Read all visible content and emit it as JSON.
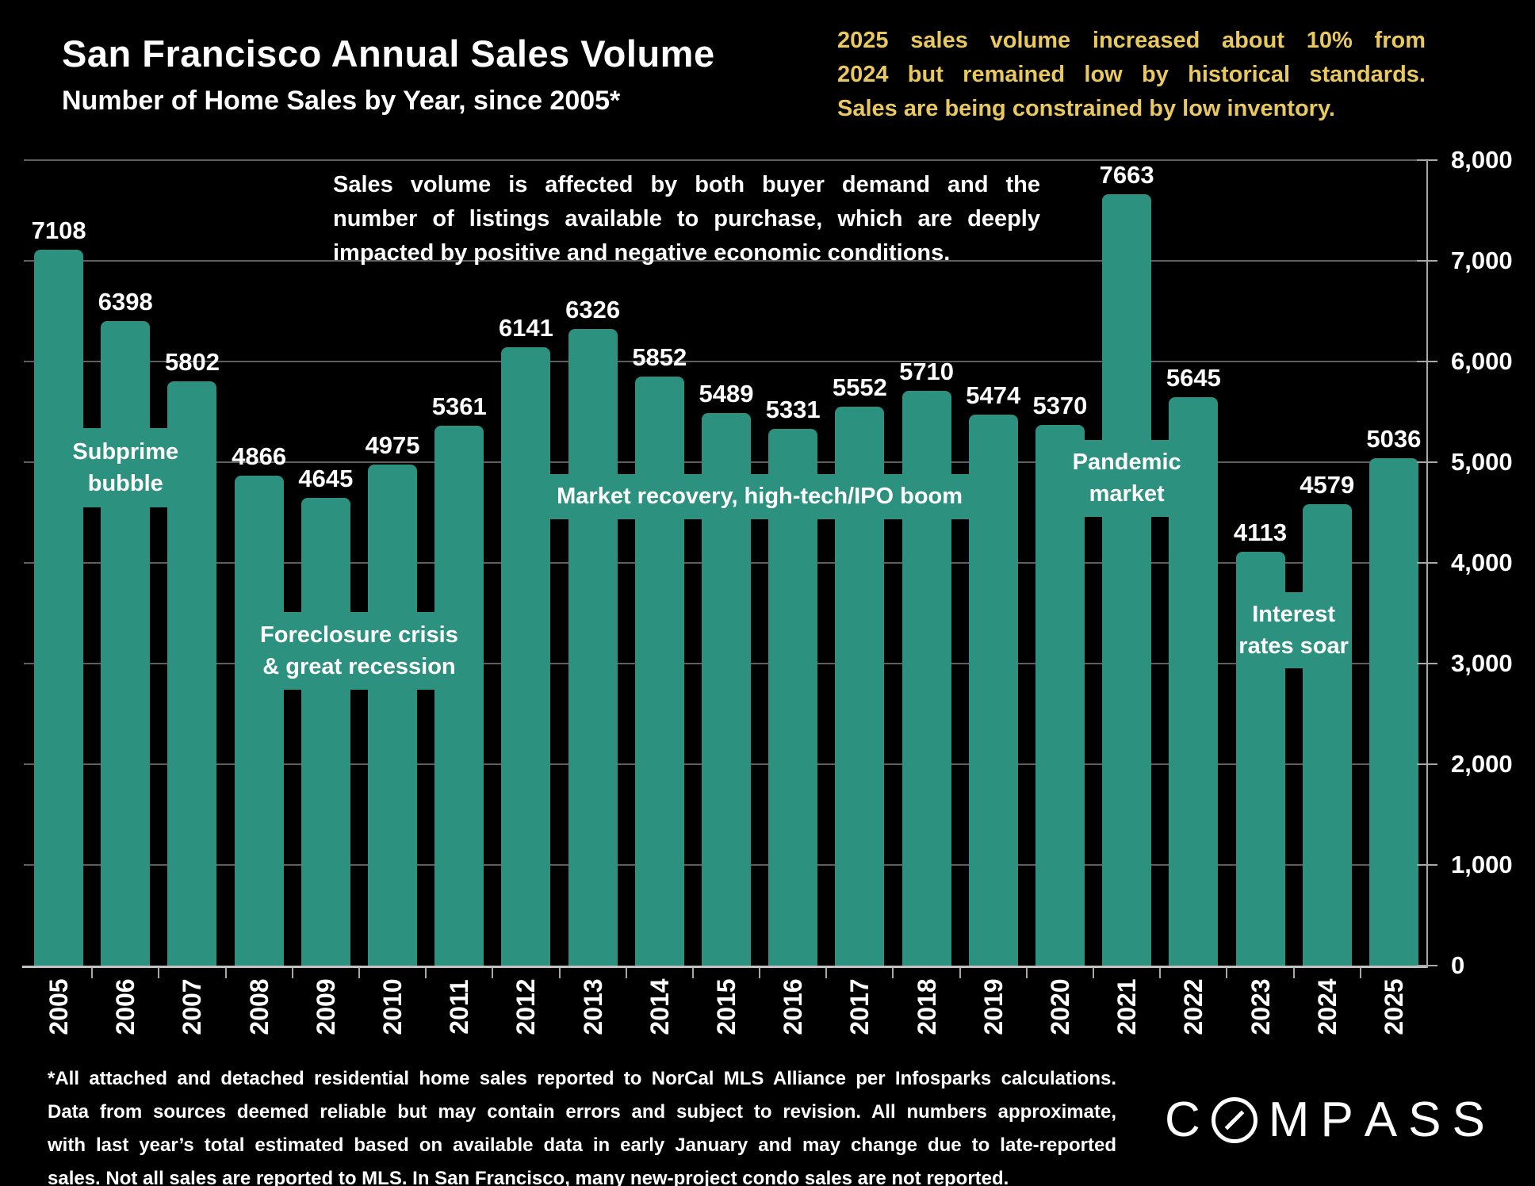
{
  "slide": {
    "title": "San Francisco Annual Sales Volume",
    "subtitle": "Number of Home Sales by Year, since 2005*",
    "highlight_note_lines": [
      "2025 sales volume increased about 10% from",
      "2024 but remained low by historical standards.",
      "Sales are being constrained by low inventory."
    ],
    "overlay_note_lines": [
      "Sales volume is affected by both buyer demand and the",
      "number of listings available to purchase, which are deeply",
      "impacted by positive and negative economic conditions."
    ],
    "footnote_lines": [
      "*All attached and detached residential home sales reported to NorCal MLS Alliance per Infosparks calculations.",
      "Data from sources deemed reliable but may contain errors and subject to revision. All numbers approximate,",
      "with last year’s total estimated based on available data in early January and may change due to late-reported",
      "sales. Not all sales are reported to MLS. In San Francisco, many new-project condo sales are not reported."
    ],
    "logo_text": "COMPASS",
    "colors": {
      "background": "#000000",
      "bar": "#2D9180",
      "accent_text": "#E9C85E",
      "text": "#FFFFFF",
      "grid": "#5F5F5F",
      "axis": "#A8A8A8",
      "baseline": "#C2C2C2"
    }
  },
  "chart_data": {
    "type": "bar",
    "title": "San Francisco Annual Sales Volume",
    "subtitle": "Number of Home Sales by Year, since 2005*",
    "categories": [
      "2005",
      "2006",
      "2007",
      "2008",
      "2009",
      "2010",
      "2011",
      "2012",
      "2013",
      "2014",
      "2015",
      "2016",
      "2017",
      "2018",
      "2019",
      "2020",
      "2021",
      "2022",
      "2023",
      "2024",
      "2025"
    ],
    "values": [
      7108,
      6398,
      5802,
      4866,
      4645,
      4975,
      5361,
      6141,
      6326,
      5852,
      5489,
      5331,
      5552,
      5710,
      5474,
      5370,
      7663,
      5645,
      4113,
      4579,
      5036
    ],
    "xlabel": "",
    "ylabel": "",
    "ylim": [
      0,
      8000
    ],
    "ytick_interval": 1000,
    "ytick_labels": [
      "0",
      "1,000",
      "2,000",
      "3,000",
      "4,000",
      "5,000",
      "6,000",
      "7,000",
      "8,000"
    ],
    "grid": true,
    "legend": false,
    "axis_side": "right",
    "bar_color": "#2D9180",
    "value_labels_shown": true,
    "annotations": [
      {
        "id": "subprime-bubble",
        "lines": [
          "Subprime",
          "bubble"
        ],
        "start_index": 0,
        "end_index": 2,
        "v_top": 5340,
        "v_bottom": 4550
      },
      {
        "id": "foreclosure-crisis",
        "lines": [
          "Foreclosure crisis",
          "& great recession"
        ],
        "start_index": 3,
        "end_index": 6,
        "v_top": 3512,
        "v_bottom": 2740
      },
      {
        "id": "market-recovery",
        "lines": [
          "Market recovery, high-tech/IPO boom"
        ],
        "start_index": 7,
        "end_index": 14,
        "v_top": 4882,
        "v_bottom": 4433
      },
      {
        "id": "pandemic-market",
        "lines": [
          "Pandemic",
          "market"
        ],
        "start_index": 15,
        "end_index": 17,
        "v_top": 5220,
        "v_bottom": 4457
      },
      {
        "id": "interest-rates-soar",
        "lines": [
          "Interest",
          "rates soar"
        ],
        "start_index": 18,
        "end_index": 19,
        "v_top": 3709,
        "v_bottom": 2953
      }
    ]
  }
}
